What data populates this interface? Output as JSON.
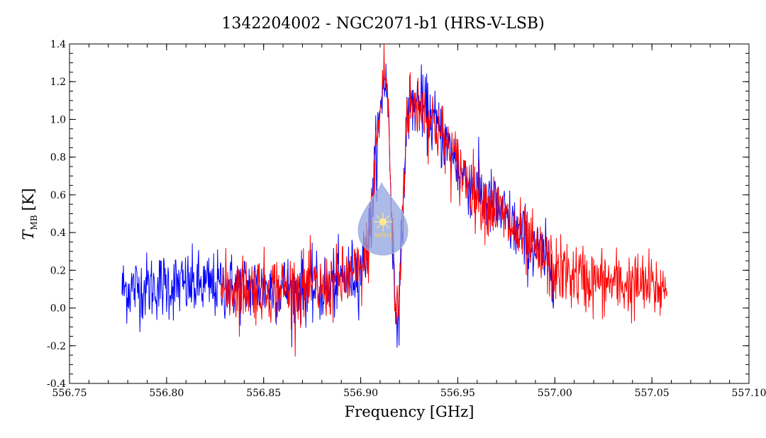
{
  "chart_data": {
    "type": "line",
    "title": "1342204002 - NGC2071-b1 (HRS-V-LSB)",
    "xlabel": "Frequency [GHz]",
    "ylabel_main": "T",
    "ylabel_sub": "MB",
    "ylabel_unit": "[K]",
    "xlim": [
      556.75,
      557.1
    ],
    "ylim": [
      -0.4,
      1.4
    ],
    "x_ticks": [
      "556.75",
      "556.80",
      "556.85",
      "556.90",
      "556.95",
      "557.00",
      "557.05",
      "557.10"
    ],
    "y_ticks": [
      "-0.4",
      "-0.2",
      "0.0",
      "0.2",
      "0.4",
      "0.6",
      "0.8",
      "1.0",
      "1.2",
      "1.4"
    ],
    "x_tick_values": [
      556.75,
      556.8,
      556.85,
      556.9,
      556.95,
      557.0,
      557.05,
      557.1
    ],
    "y_tick_values": [
      -0.4,
      -0.2,
      0.0,
      0.2,
      0.4,
      0.6,
      0.8,
      1.0,
      1.2,
      1.4
    ],
    "grid": false,
    "logo_text": "WISH",
    "series": [
      {
        "color": "#0000ff",
        "x_range": [
          556.777,
          557.0
        ],
        "profile": [
          [
            556.777,
            0.1
          ],
          [
            556.8,
            0.12
          ],
          [
            556.85,
            0.11
          ],
          [
            556.88,
            0.1
          ],
          [
            556.9,
            0.2
          ],
          [
            556.904,
            0.35
          ],
          [
            556.906,
            0.55
          ],
          [
            556.908,
            0.85
          ],
          [
            556.91,
            1.0
          ],
          [
            556.912,
            1.25
          ],
          [
            556.914,
            1.1
          ],
          [
            556.916,
            0.5
          ],
          [
            556.918,
            -0.05
          ],
          [
            556.92,
            0.05
          ],
          [
            556.922,
            0.6
          ],
          [
            556.924,
            1.05
          ],
          [
            556.93,
            1.1
          ],
          [
            556.94,
            0.95
          ],
          [
            556.95,
            0.75
          ],
          [
            556.96,
            0.62
          ],
          [
            556.97,
            0.52
          ],
          [
            556.98,
            0.42
          ],
          [
            556.99,
            0.3
          ],
          [
            557.0,
            0.22
          ]
        ],
        "noise": 0.09
      },
      {
        "color": "#ff0000",
        "x_range": [
          556.828,
          557.058
        ],
        "profile": [
          [
            556.828,
            0.1
          ],
          [
            556.85,
            0.11
          ],
          [
            556.88,
            0.1
          ],
          [
            556.9,
            0.18
          ],
          [
            556.904,
            0.32
          ],
          [
            556.906,
            0.55
          ],
          [
            556.908,
            0.88
          ],
          [
            556.91,
            1.02
          ],
          [
            556.912,
            1.28
          ],
          [
            556.914,
            1.12
          ],
          [
            556.916,
            0.45
          ],
          [
            556.918,
            -0.05
          ],
          [
            556.92,
            0.08
          ],
          [
            556.922,
            0.65
          ],
          [
            556.924,
            1.05
          ],
          [
            556.93,
            1.08
          ],
          [
            556.94,
            0.95
          ],
          [
            556.95,
            0.75
          ],
          [
            556.96,
            0.6
          ],
          [
            556.97,
            0.52
          ],
          [
            556.98,
            0.4
          ],
          [
            556.99,
            0.3
          ],
          [
            557.0,
            0.2
          ],
          [
            557.02,
            0.14
          ],
          [
            557.04,
            0.12
          ],
          [
            557.058,
            0.1
          ]
        ],
        "noise": 0.09
      }
    ]
  }
}
